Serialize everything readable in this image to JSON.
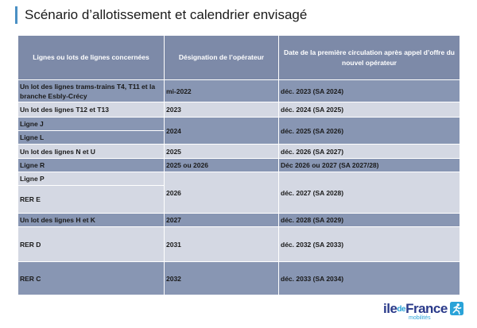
{
  "title": "Scénario d’allotissement et calendrier envisagé",
  "table": {
    "headers": [
      "Lignes ou lots de lignes concernées",
      "Désignation de l’opérateur",
      "Date de la première circulation après appel d’offre du nouvel opérateur"
    ],
    "rows": [
      {
        "lot": "Un lot des lignes trams-trains T4, T11 et la branche Esbly-Crécy",
        "designation": "mi-2022",
        "date": "déc. 2023 (SA 2024)"
      },
      {
        "lot": "Un lot des lignes T12 et T13",
        "designation": "2023",
        "date": "déc. 2024 (SA 2025)"
      },
      {
        "lot": "Ligne J",
        "lot_b": "Ligne L",
        "designation": "2024",
        "date": "déc. 2025 (SA 2026)"
      },
      {
        "lot": "Un lot des lignes N et U",
        "designation": "2025",
        "date": "déc. 2026 (SA 2027)"
      },
      {
        "lot": "Ligne R",
        "designation": "2025 ou 2026",
        "date": "Déc 2026 ou 2027 (SA 2027/28)"
      },
      {
        "lot": "Ligne P",
        "lot_b": "RER E",
        "designation": "2026",
        "date": "déc. 2027 (SA 2028)"
      },
      {
        "lot": "Un lot des lignes H et K",
        "designation": "2027",
        "date": "déc. 2028 (SA 2029)"
      },
      {
        "lot": "RER D",
        "designation": "2031",
        "date": "déc. 2032 (SA 2033)"
      },
      {
        "lot": "RER C",
        "designation": "2032",
        "date": "déc. 2033 (SA 2034)"
      }
    ]
  },
  "logo": {
    "main_a": "ile",
    "main_b": "de",
    "main_c": "France",
    "sub": "mobilités",
    "icon": "runner-icon"
  },
  "colors": {
    "accent": "#4a90c4",
    "header": "#7d8aa8",
    "row_dark": "#8896b3",
    "row_light": "#d4d8e3"
  }
}
